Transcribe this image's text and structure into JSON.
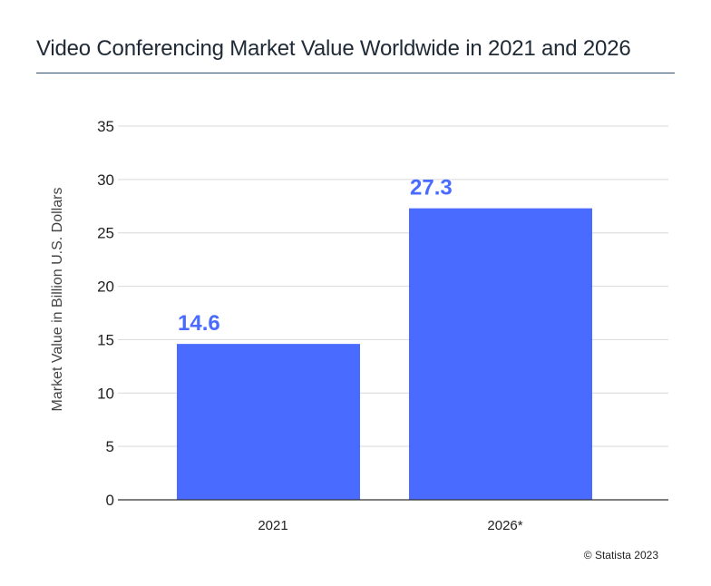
{
  "header": {
    "title": "Video Conferencing Market Value Worldwide in 2021 and 2026"
  },
  "footer": {
    "copyright": "© Statista 2023"
  },
  "chart_data": {
    "type": "bar",
    "title": "Video Conferencing Market Value Worldwide in 2021 and 2026",
    "xlabel": "",
    "ylabel": "Market Value in Billion U.S. Dollars",
    "categories": [
      "2021",
      "2026*"
    ],
    "values": [
      14.6,
      27.3
    ],
    "data_labels": [
      "14.6",
      "27.3"
    ],
    "ylim": [
      0,
      35
    ],
    "yticks": [
      0,
      5,
      10,
      15,
      20,
      25,
      30,
      35
    ],
    "grid": true,
    "legend": "none",
    "bar_color": "#4a6bff",
    "label_color": "#4a6bff"
  }
}
